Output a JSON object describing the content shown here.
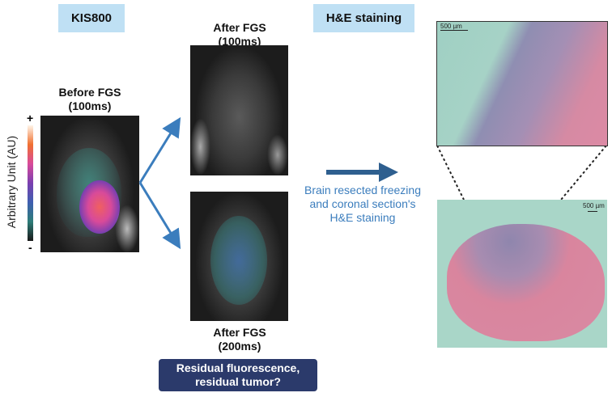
{
  "labels": {
    "left_box": "KIS800",
    "right_box": "H&E staining"
  },
  "panels": {
    "before": {
      "title": "Before FGS",
      "exposure": "(100ms)"
    },
    "after_top": {
      "title": "After FGS",
      "exposure": "(100ms)"
    },
    "after_bottom": {
      "title": "After FGS",
      "exposure": "(200ms)"
    }
  },
  "colorbar": {
    "axis_label": "Arbitrary Unit (AU)",
    "max": "+",
    "min": "-",
    "colors": [
      "#1a1a1a",
      "#2e7d78",
      "#3f5fb0",
      "#7a3fb0",
      "#d84a9a",
      "#f07030",
      "#fff5e8"
    ]
  },
  "question_box": {
    "line1": "Residual fluorescence,",
    "line2": "residual tumor?",
    "color": "#2b3a6b"
  },
  "process": {
    "line1": "Brain resected freezing",
    "line2": "and coronal section's",
    "line3": "H&E staining",
    "color": "#3b7dbd"
  },
  "histology": {
    "scale_top": "500 µm",
    "scale_bottom": "500 µm"
  }
}
